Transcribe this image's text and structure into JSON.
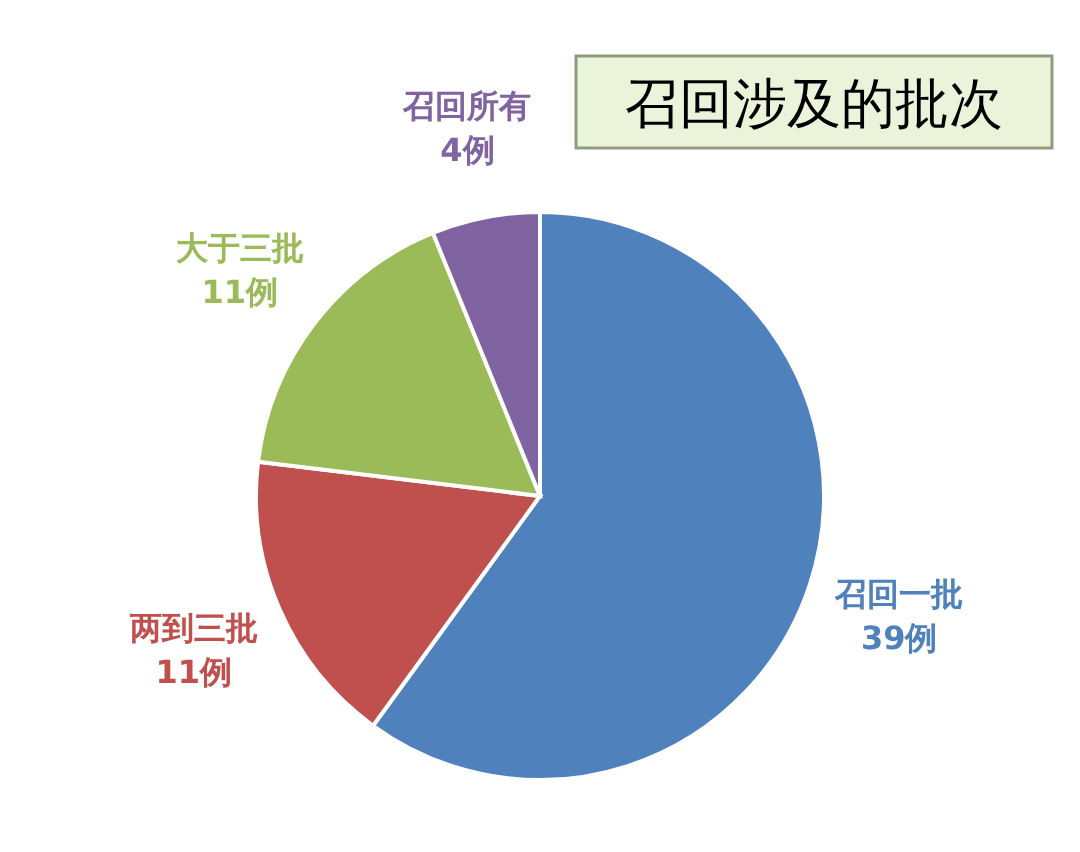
{
  "chart_data": {
    "type": "pie",
    "title": "召回涉及的批次",
    "categories": [
      "召回一批",
      "两到三批",
      "大于三批",
      "召回所有"
    ],
    "values": [
      39,
      11,
      11,
      4
    ],
    "value_labels": [
      "39例",
      "11例",
      "11例",
      "4例"
    ],
    "colors": [
      "#4f81bd",
      "#c0504d",
      "#9bbb59",
      "#8064a2"
    ]
  }
}
